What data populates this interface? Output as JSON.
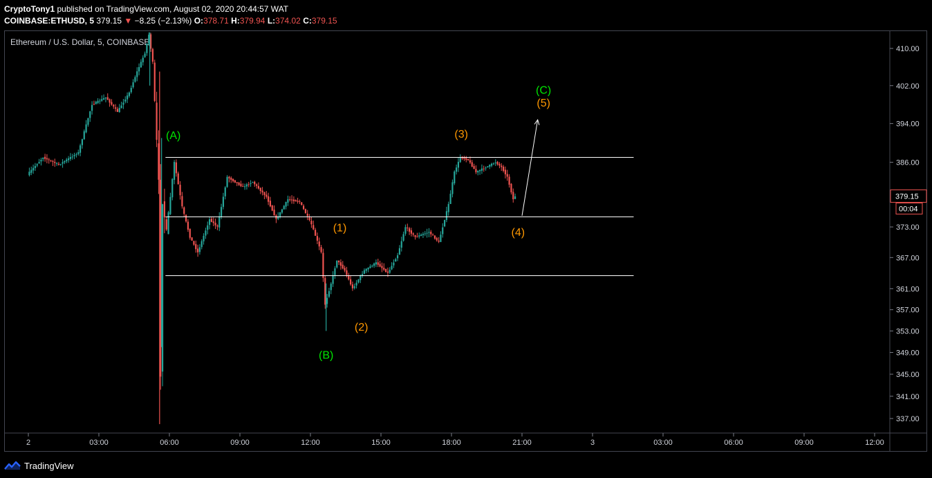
{
  "header": {
    "author": "CryptoTony1",
    "published_text": "published on TradingView.com, August 02, 2020 20:44:57 WAT",
    "symbol": "COINBASE:ETHUSD, 5",
    "last_price": "379.15",
    "change_arrow": "▼",
    "change": "−8.25 (−2.13%)",
    "o_label": "O:",
    "o_value": "378.71",
    "h_label": "H:",
    "h_value": "379.94",
    "l_label": "L:",
    "l_value": "374.02",
    "c_label": "C:",
    "c_value": "379.15"
  },
  "footer": {
    "brand": "TradingView",
    "logo_icon": "tradingview-logo-icon"
  },
  "colors": {
    "background": "#000000",
    "up": "#26a69a",
    "down": "#ef5350",
    "wave_green": "#00e600",
    "wave_orange": "#ff9800",
    "lines": "#ffffff",
    "axis_text": "#d1d4dc"
  },
  "chart_data": {
    "type": "candlestick",
    "title": "Ethereum / U.S. Dollar, 5, COINBASE",
    "y_axis": {
      "scale": "log",
      "position": "right",
      "ticks": [
        "410.00",
        "402.00",
        "394.00",
        "386.00",
        "373.00",
        "367.00",
        "361.00",
        "357.00",
        "353.00",
        "349.00",
        "345.00",
        "341.00",
        "337.00"
      ],
      "current_price_label": "379.15",
      "countdown_label": "00:04"
    },
    "x_axis": {
      "ticks": [
        "2",
        "03:00",
        "06:00",
        "09:00",
        "12:00",
        "15:00",
        "18:00",
        "21:00",
        "3",
        "03:00",
        "06:00",
        "09:00",
        "12:00"
      ]
    },
    "price_path": [
      [
        "00:00",
        383.5
      ],
      [
        "00:40",
        387.0
      ],
      [
        "01:20",
        385.5
      ],
      [
        "02:10",
        388.0
      ],
      [
        "02:45",
        398.0
      ],
      [
        "03:20",
        399.5
      ],
      [
        "03:50",
        396.5
      ],
      [
        "04:20",
        400.5
      ],
      [
        "04:40",
        405.0
      ],
      [
        "05:00",
        409.0
      ],
      [
        "05:10",
        413.0
      ],
      [
        "05:20",
        407.0
      ],
      [
        "05:35",
        382.0
      ],
      [
        "05:40",
        345.0
      ],
      [
        "05:45",
        378.0
      ],
      [
        "05:55",
        372.0
      ],
      [
        "06:15",
        386.0
      ],
      [
        "06:35",
        377.0
      ],
      [
        "06:55",
        371.0
      ],
      [
        "07:15",
        368.0
      ],
      [
        "07:45",
        374.5
      ],
      [
        "08:05",
        373.0
      ],
      [
        "08:30",
        383.0
      ],
      [
        "09:10",
        381.0
      ],
      [
        "09:35",
        382.0
      ],
      [
        "10:10",
        379.0
      ],
      [
        "10:35",
        374.5
      ],
      [
        "11:05",
        378.5
      ],
      [
        "11:35",
        378.0
      ],
      [
        "12:05",
        373.5
      ],
      [
        "12:30",
        368.0
      ],
      [
        "12:40",
        358.0
      ],
      [
        "12:55",
        362.0
      ],
      [
        "13:10",
        366.5
      ],
      [
        "13:30",
        364.5
      ],
      [
        "13:50",
        361.0
      ],
      [
        "14:20",
        364.5
      ],
      [
        "14:50",
        366.0
      ],
      [
        "15:20",
        364.0
      ],
      [
        "15:45",
        367.5
      ],
      [
        "16:05",
        373.0
      ],
      [
        "16:30",
        371.0
      ],
      [
        "17:05",
        372.0
      ],
      [
        "17:30",
        370.0
      ],
      [
        "17:55",
        377.5
      ],
      [
        "18:10",
        384.0
      ],
      [
        "18:25",
        387.0
      ],
      [
        "18:45",
        386.5
      ],
      [
        "19:05",
        384.0
      ],
      [
        "19:30",
        385.0
      ],
      [
        "19:55",
        386.0
      ],
      [
        "20:10",
        385.0
      ],
      [
        "20:25",
        383.0
      ],
      [
        "20:40",
        378.5
      ],
      [
        "20:45",
        379.15
      ]
    ],
    "horizontal_levels": [
      {
        "price": 387.0,
        "from": "05:50",
        "to": "01:45+1"
      },
      {
        "price": 375.0,
        "from": "05:50",
        "to": "01:45+1"
      },
      {
        "price": 363.5,
        "from": "05:50",
        "to": "01:45+1"
      }
    ],
    "projection_arrow": {
      "from": [
        "21:00",
        375.2
      ],
      "to": [
        "21:40",
        394.8
      ]
    },
    "wave_labels": [
      {
        "text": "(A)",
        "time": "06:10",
        "price": 391.5,
        "color": "green"
      },
      {
        "text": "(B)",
        "time": "12:40",
        "price": 348.5,
        "color": "green"
      },
      {
        "text": "(C)",
        "time": "21:55",
        "price": 401.0,
        "color": "green"
      },
      {
        "text": "(1)",
        "time": "13:15",
        "price": 372.8,
        "color": "orange"
      },
      {
        "text": "(2)",
        "time": "14:10",
        "price": 353.7,
        "color": "orange"
      },
      {
        "text": "(3)",
        "time": "18:25",
        "price": 391.8,
        "color": "orange"
      },
      {
        "text": "(4)",
        "time": "20:50",
        "price": 371.9,
        "color": "orange"
      },
      {
        "text": "(5)",
        "time": "21:55",
        "price": 398.3,
        "color": "orange"
      }
    ]
  }
}
